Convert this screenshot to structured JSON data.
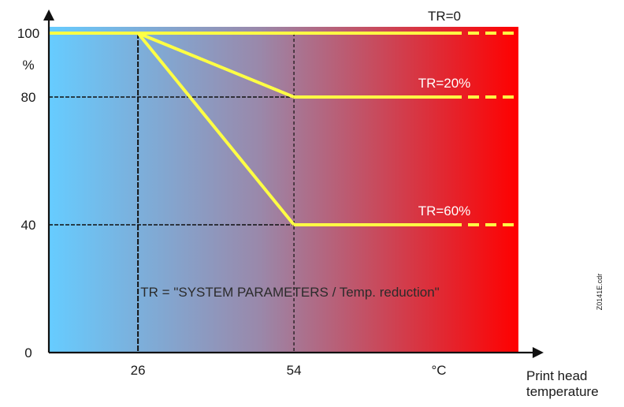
{
  "chart_data": {
    "type": "line",
    "xlabel": "Print head temperature",
    "x_unit": "°C",
    "ylabel": "%",
    "y_ticks": [
      0,
      40,
      80,
      100
    ],
    "x_ticks": [
      26,
      54
    ],
    "ylim": [
      0,
      100
    ],
    "grid": "dashed reference lines at the tick values",
    "series": [
      {
        "name": "TR=0",
        "x": [
          26,
          54
        ],
        "y": [
          100,
          100
        ],
        "extends_right": true
      },
      {
        "name": "TR=20%",
        "x": [
          26,
          54
        ],
        "y": [
          100,
          80
        ],
        "extends_right": true
      },
      {
        "name": "TR=60%",
        "x": [
          26,
          54
        ],
        "y": [
          100,
          40
        ],
        "extends_right": true
      }
    ],
    "annotation": "TR = \"SYSTEM PARAMETERS / Temp. reduction\"",
    "side_code": "Z0141E.cdr",
    "colors": {
      "gradient_start": "#66ccff",
      "gradient_mid": "#9a88aa",
      "gradient_end": "#ff0000",
      "series_line": "#ffff44",
      "axis": "#111111"
    }
  }
}
